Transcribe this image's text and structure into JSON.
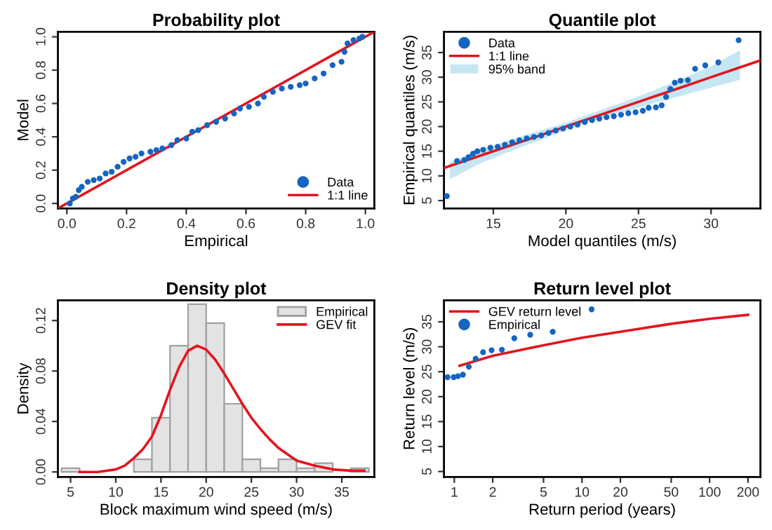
{
  "chart_data": [
    {
      "type": "scatter",
      "title": "Probability plot",
      "xlabel": "Empirical",
      "ylabel": "Model",
      "legend": "bottom right",
      "grid": false,
      "xlim": [
        -0.03,
        1.03
      ],
      "ylim": [
        -0.03,
        1.03
      ],
      "xticks": [
        {
          "value": 0,
          "label": "0.0"
        },
        {
          "value": 0.2,
          "label": "0.2"
        },
        {
          "value": 0.4,
          "label": "0.4"
        },
        {
          "value": 0.6,
          "label": "0.6"
        },
        {
          "value": 0.8,
          "label": "0.8"
        },
        {
          "value": 1,
          "label": "1.0"
        }
      ],
      "yticks": [
        {
          "value": 0,
          "label": "0.0"
        },
        {
          "value": 0.2,
          "label": "0.2"
        },
        {
          "value": 0.4,
          "label": "0.4"
        },
        {
          "value": 0.6,
          "label": "0.6"
        },
        {
          "value": 0.8,
          "label": "0.8"
        },
        {
          "value": 1,
          "label": "1.0"
        }
      ],
      "series": [
        {
          "name": "Data",
          "marker": "circle",
          "color": "#1565c0",
          "x": [
            0.01,
            0.02,
            0.03,
            0.04,
            0.05,
            0.07,
            0.09,
            0.11,
            0.13,
            0.15,
            0.17,
            0.19,
            0.21,
            0.23,
            0.25,
            0.28,
            0.3,
            0.32,
            0.35,
            0.37,
            0.4,
            0.42,
            0.44,
            0.47,
            0.5,
            0.53,
            0.56,
            0.58,
            0.61,
            0.64,
            0.66,
            0.69,
            0.72,
            0.75,
            0.78,
            0.8,
            0.83,
            0.86,
            0.89,
            0.92,
            0.93,
            0.94,
            0.96,
            0.98,
            0.99
          ],
          "values": [
            0.0,
            0.03,
            0.04,
            0.08,
            0.1,
            0.13,
            0.14,
            0.15,
            0.18,
            0.19,
            0.22,
            0.25,
            0.27,
            0.28,
            0.3,
            0.31,
            0.32,
            0.33,
            0.35,
            0.38,
            0.39,
            0.43,
            0.44,
            0.47,
            0.49,
            0.51,
            0.54,
            0.57,
            0.58,
            0.6,
            0.64,
            0.67,
            0.69,
            0.7,
            0.71,
            0.72,
            0.75,
            0.78,
            0.83,
            0.85,
            0.91,
            0.96,
            0.98,
            0.99,
            1.0
          ]
        },
        {
          "name": "1:1 line",
          "type": "line",
          "marker": "none",
          "color": "#e3141e",
          "x": [
            -0.03,
            1.03
          ],
          "values": [
            -0.03,
            1.03
          ]
        }
      ]
    },
    {
      "type": "scatter",
      "title": "Quantile plot",
      "xlabel": "Model quantiles (m/s)",
      "ylabel": "Empirical quantiles (m/s)",
      "legend": "top left",
      "grid": false,
      "xlim": [
        11.6,
        33.4
      ],
      "ylim": [
        3.4,
        39.2
      ],
      "xticks": [
        15,
        20,
        25,
        30
      ],
      "yticks": [
        5,
        10,
        15,
        20,
        25,
        30,
        35
      ],
      "series": [
        {
          "name": "Data",
          "marker": "circle",
          "color": "#1565c0",
          "x": [
            11.8,
            12.5,
            13.0,
            13.3,
            13.6,
            13.9,
            14.3,
            14.8,
            15.3,
            15.8,
            16.3,
            16.8,
            17.3,
            17.8,
            18.3,
            18.8,
            19.3,
            19.8,
            20.3,
            20.8,
            21.3,
            21.8,
            22.3,
            22.8,
            23.3,
            23.8,
            24.3,
            24.8,
            25.3,
            25.7,
            26.2,
            26.6,
            26.9,
            27.2,
            27.5,
            27.9,
            28.4,
            28.9,
            29.6,
            30.5,
            31.9
          ],
          "values": [
            5.9,
            13.0,
            13.2,
            13.8,
            14.5,
            15.0,
            15.3,
            15.7,
            15.9,
            16.3,
            16.8,
            17.2,
            17.6,
            17.9,
            18.2,
            18.7,
            19.2,
            19.6,
            20.0,
            20.4,
            20.9,
            21.3,
            21.6,
            21.9,
            22.1,
            22.4,
            22.7,
            22.9,
            23.2,
            23.8,
            23.9,
            24.3,
            26.0,
            27.6,
            28.9,
            29.3,
            29.4,
            31.7,
            32.4,
            33.0,
            37.5
          ]
        },
        {
          "name": "1:1 line",
          "type": "line",
          "marker": "none",
          "color": "#e3141e",
          "x": [
            11.6,
            12,
            14,
            16,
            18,
            20,
            22,
            24,
            26,
            28,
            30,
            32,
            33.4
          ],
          "values": [
            11.6,
            12,
            14,
            16,
            18,
            20,
            22,
            24,
            26,
            28,
            30,
            32,
            33.4
          ],
          "lower": [
            null,
            9.3,
            12.4,
            14.8,
            17.0,
            19.3,
            21.3,
            23.0,
            24.7,
            26.3,
            27.9,
            29.5,
            null
          ],
          "upper": [
            null,
            12.8,
            15.2,
            17.2,
            19.0,
            20.8,
            22.9,
            25.0,
            27.3,
            29.7,
            32.2,
            35.5,
            null
          ]
        },
        {
          "name": "95% band",
          "type": "area",
          "color": "#c6e6f4"
        }
      ]
    },
    {
      "type": "histogram",
      "title": "Density plot",
      "xlabel": "Block maximum wind speed (m/s)",
      "ylabel": "Density",
      "legend": "top right",
      "grid": false,
      "xlim": [
        3.6,
        38.6
      ],
      "ylim": [
        -0.004,
        0.136
      ],
      "xticks": [
        5,
        10,
        15,
        20,
        25,
        30,
        35
      ],
      "yticks": [
        {
          "value": 0,
          "label": "0.00"
        },
        {
          "value": 0.04,
          "label": "0.04"
        },
        {
          "value": 0.08,
          "label": "0.08"
        },
        {
          "value": 0.12,
          "label": "0.12"
        }
      ],
      "series": [
        {
          "name": "Empirical",
          "color": "#e3e3e3",
          "bins": [
            4,
            6,
            8,
            10,
            12,
            14,
            16,
            18,
            20,
            22,
            24,
            26,
            28,
            30,
            32,
            34,
            36,
            38
          ],
          "values": [
            0.003,
            0,
            0,
            0,
            0.01,
            0.043,
            0.1,
            0.133,
            0.118,
            0.054,
            0.01,
            0.003,
            0.01,
            0.003,
            0.007,
            0,
            0.003
          ]
        },
        {
          "name": "GEV fit",
          "type": "line",
          "color": "#e3141e",
          "x": [
            6,
            8,
            10,
            11,
            12,
            13,
            14,
            15,
            16,
            17,
            18,
            19,
            20,
            21,
            22,
            23,
            24,
            25,
            26,
            27,
            28,
            29,
            30,
            32,
            34,
            36,
            37.5
          ],
          "values": [
            0,
            0,
            0.002,
            0.005,
            0.011,
            0.018,
            0.028,
            0.045,
            0.065,
            0.083,
            0.096,
            0.1,
            0.097,
            0.089,
            0.078,
            0.066,
            0.054,
            0.043,
            0.034,
            0.026,
            0.019,
            0.014,
            0.009,
            0.005,
            0.002,
            0.001,
            0.001
          ]
        }
      ]
    },
    {
      "type": "line",
      "title": "Return level plot",
      "xlabel": "Return period (years)",
      "ylabel": "Return level (m/s)",
      "log": "x",
      "legend": "top left",
      "grid": false,
      "xlim": [
        0.83,
        250
      ],
      "ylim": [
        3.9,
        39.3
      ],
      "xticks": [
        1,
        2,
        5,
        10,
        20,
        50,
        100,
        200
      ],
      "yticks": [
        5,
        10,
        15,
        20,
        25,
        30,
        35
      ],
      "series": [
        {
          "name": "GEV return level",
          "marker": "none",
          "color": "#e3141e",
          "x": [
            1.1,
            2,
            5,
            10,
            20,
            50,
            100,
            200
          ],
          "values": [
            26.2,
            28.2,
            30.3,
            31.8,
            33.0,
            34.6,
            35.6,
            36.4
          ]
        },
        {
          "name": "Empirical",
          "type": "scatter",
          "marker": "circle",
          "color": "#1565c0",
          "x": [
            0.885,
            0.989,
            1.068,
            1.168,
            1.3,
            1.47,
            1.68,
            1.96,
            2.36,
            2.95,
            3.93,
            5.9,
            11.9
          ],
          "values": [
            23.9,
            23.9,
            24.1,
            24.4,
            26.0,
            27.6,
            28.9,
            29.3,
            29.4,
            31.7,
            32.4,
            33.0,
            37.5
          ]
        }
      ]
    }
  ]
}
